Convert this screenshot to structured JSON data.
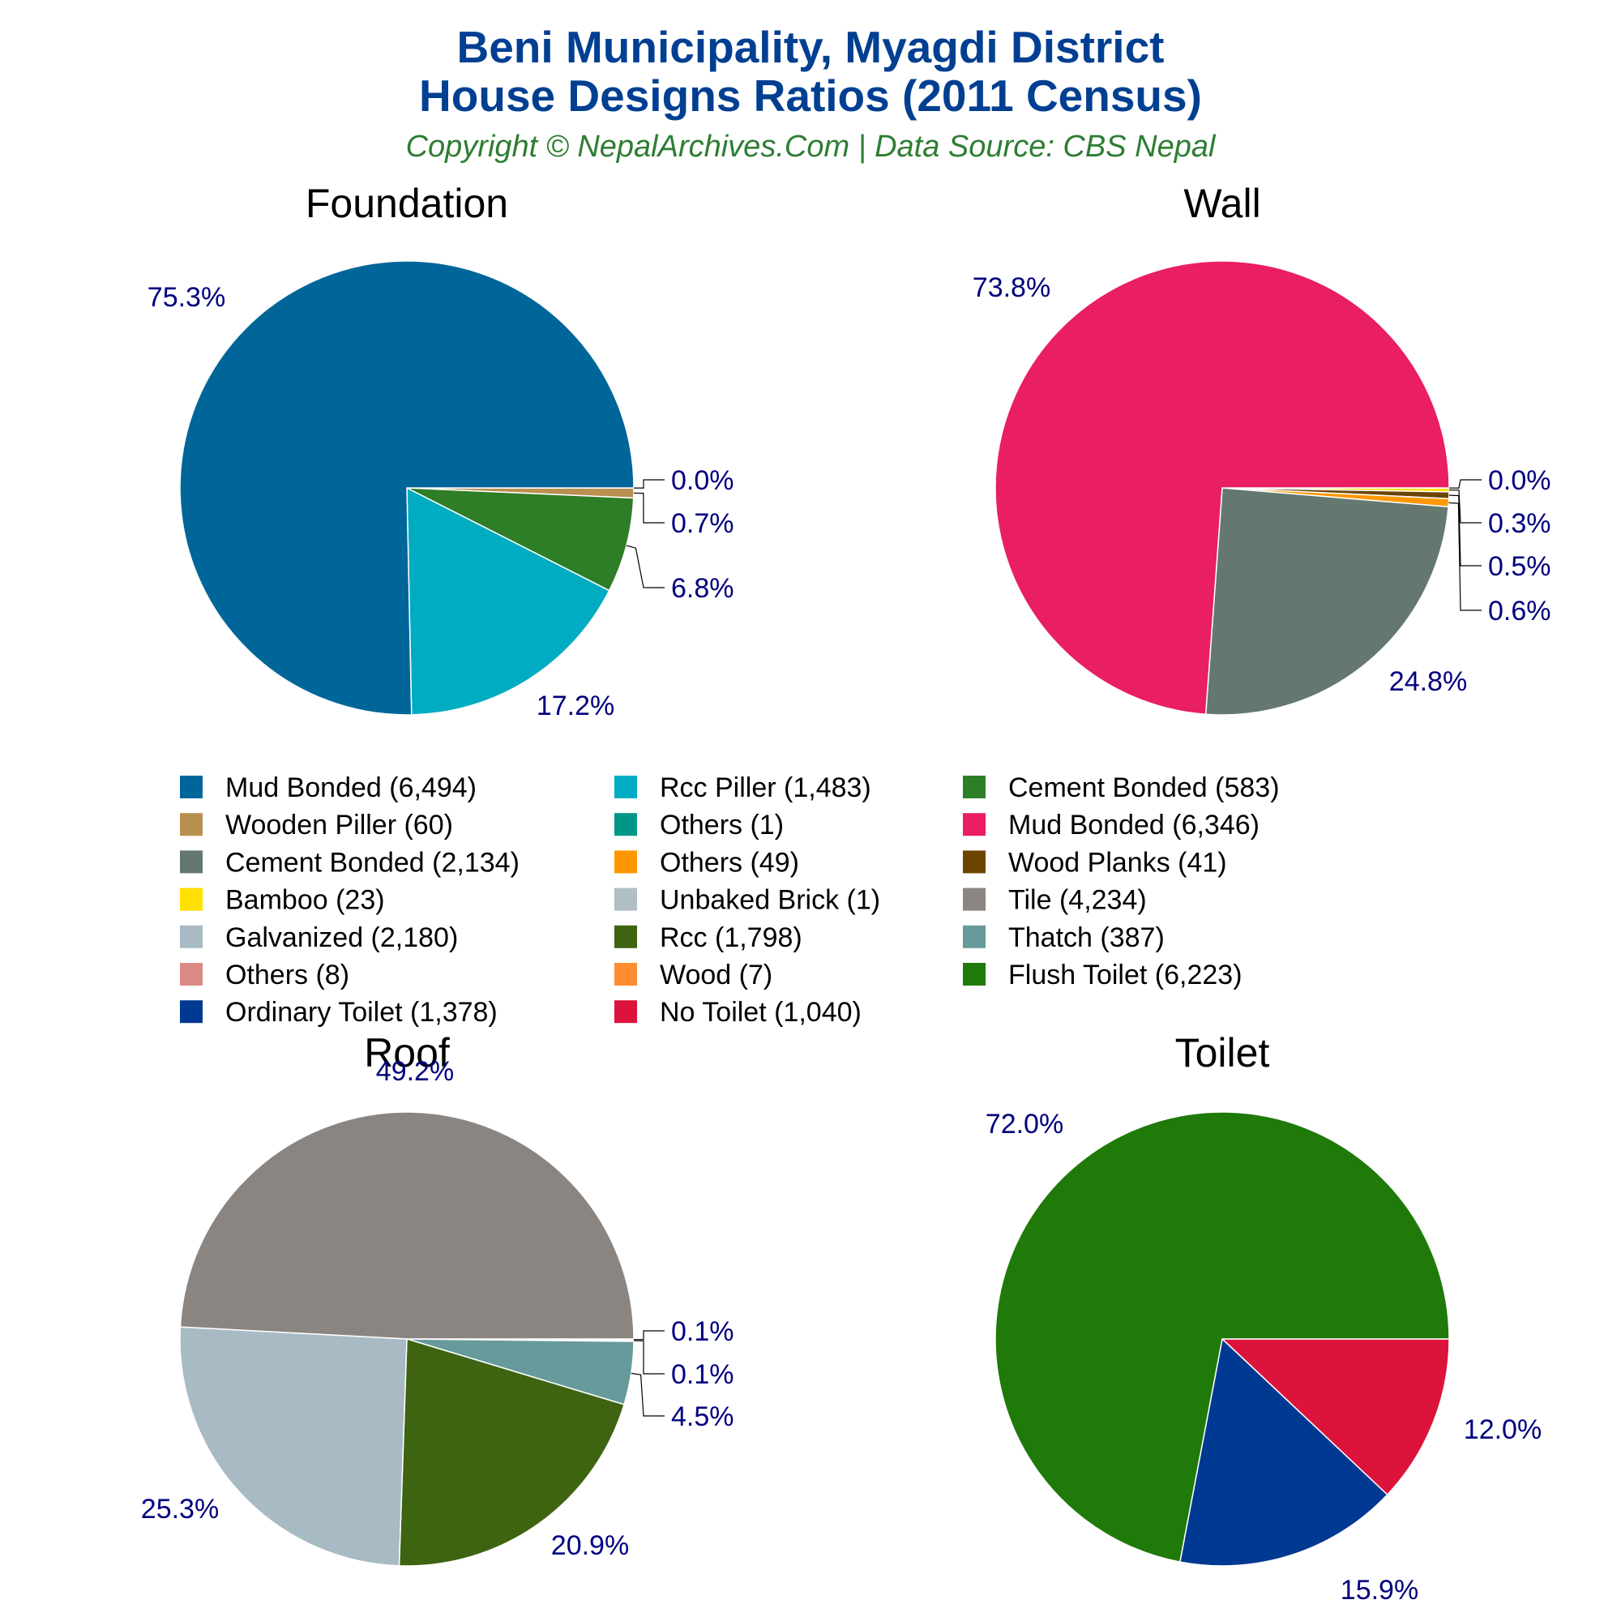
{
  "header": {
    "title_line1": "Beni Municipality, Myagdi District",
    "title_line2": "House Designs Ratios (2011 Census)",
    "subtitle": "Copyright © NepalArchives.Com | Data Source: CBS Nepal"
  },
  "chart_data": [
    {
      "type": "pie",
      "title": "Foundation",
      "slices": [
        {
          "label": "Mud Bonded",
          "value": 6494,
          "percent_label": "75.3%",
          "color": "#006699"
        },
        {
          "label": "Wooden Piller",
          "value": 60,
          "percent_label": "0.7%",
          "color": "#b8904f"
        },
        {
          "label": "Rcc Piller",
          "value": 1483,
          "percent_label": "17.2%",
          "color": "#00acc1"
        },
        {
          "label": "Others",
          "value": 1,
          "percent_label": "0.0%",
          "color": "#009688"
        },
        {
          "label": "Cement Bonded",
          "value": 583,
          "percent_label": "6.8%",
          "color": "#2e7d27"
        }
      ]
    },
    {
      "type": "pie",
      "title": "Wall",
      "slices": [
        {
          "label": "Mud Bonded",
          "value": 6346,
          "percent_label": "73.8%",
          "color": "#e91e63"
        },
        {
          "label": "Cement Bonded",
          "value": 2134,
          "percent_label": "24.8%",
          "color": "#647870"
        },
        {
          "label": "Others",
          "value": 49,
          "percent_label": "0.6%",
          "color": "#ff9800"
        },
        {
          "label": "Wood Planks",
          "value": 41,
          "percent_label": "0.5%",
          "color": "#6b4400"
        },
        {
          "label": "Bamboo",
          "value": 23,
          "percent_label": "0.3%",
          "color": "#ffe000"
        },
        {
          "label": "Unbaked Brick",
          "value": 1,
          "percent_label": "0.0%",
          "color": "#b0bec5"
        }
      ]
    },
    {
      "type": "pie",
      "title": "Roof",
      "slices": [
        {
          "label": "Tile",
          "value": 4234,
          "percent_label": "49.2%",
          "color": "#8a8580"
        },
        {
          "label": "Galvanized",
          "value": 2180,
          "percent_label": "25.3%",
          "color": "#a8bac4"
        },
        {
          "label": "Rcc",
          "value": 1798,
          "percent_label": "20.9%",
          "color": "#3e6412"
        },
        {
          "label": "Thatch",
          "value": 387,
          "percent_label": "4.5%",
          "color": "#679a9a"
        },
        {
          "label": "Others",
          "value": 8,
          "percent_label": "0.1%",
          "color": "#d98a82"
        },
        {
          "label": "Wood",
          "value": 7,
          "percent_label": "0.1%",
          "color": "#ff8c2e"
        }
      ]
    },
    {
      "type": "pie",
      "title": "Toilet",
      "slices": [
        {
          "label": "Flush Toilet",
          "value": 6223,
          "percent_label": "72.0%",
          "color": "#1f7a0a"
        },
        {
          "label": "Ordinary Toilet",
          "value": 1378,
          "percent_label": "15.9%",
          "color": "#003991"
        },
        {
          "label": "No Toilet",
          "value": 1040,
          "percent_label": "12.0%",
          "color": "#dc143c"
        }
      ]
    }
  ],
  "legend": {
    "items": [
      {
        "text": "Mud Bonded (6,494)",
        "color": "#006699"
      },
      {
        "text": "Rcc Piller (1,483)",
        "color": "#00acc1"
      },
      {
        "text": "Cement Bonded (583)",
        "color": "#2e7d27"
      },
      {
        "text": "Wooden Piller (60)",
        "color": "#b8904f"
      },
      {
        "text": "Others (1)",
        "color": "#009688"
      },
      {
        "text": "Mud Bonded (6,346)",
        "color": "#e91e63"
      },
      {
        "text": "Cement Bonded (2,134)",
        "color": "#647870"
      },
      {
        "text": "Others (49)",
        "color": "#ff9800"
      },
      {
        "text": "Wood Planks (41)",
        "color": "#6b4400"
      },
      {
        "text": "Bamboo (23)",
        "color": "#ffe000"
      },
      {
        "text": "Unbaked Brick (1)",
        "color": "#b0bec5"
      },
      {
        "text": "Tile (4,234)",
        "color": "#8a8580"
      },
      {
        "text": "Galvanized (2,180)",
        "color": "#a8bac4"
      },
      {
        "text": "Rcc (1,798)",
        "color": "#3e6412"
      },
      {
        "text": "Thatch (387)",
        "color": "#679a9a"
      },
      {
        "text": "Others (8)",
        "color": "#d98a82"
      },
      {
        "text": "Wood (7)",
        "color": "#ff8c2e"
      },
      {
        "text": "Flush Toilet (6,223)",
        "color": "#1f7a0a"
      },
      {
        "text": "Ordinary Toilet (1,378)",
        "color": "#003991"
      },
      {
        "text": "No Toilet (1,040)",
        "color": "#dc143c"
      }
    ]
  }
}
